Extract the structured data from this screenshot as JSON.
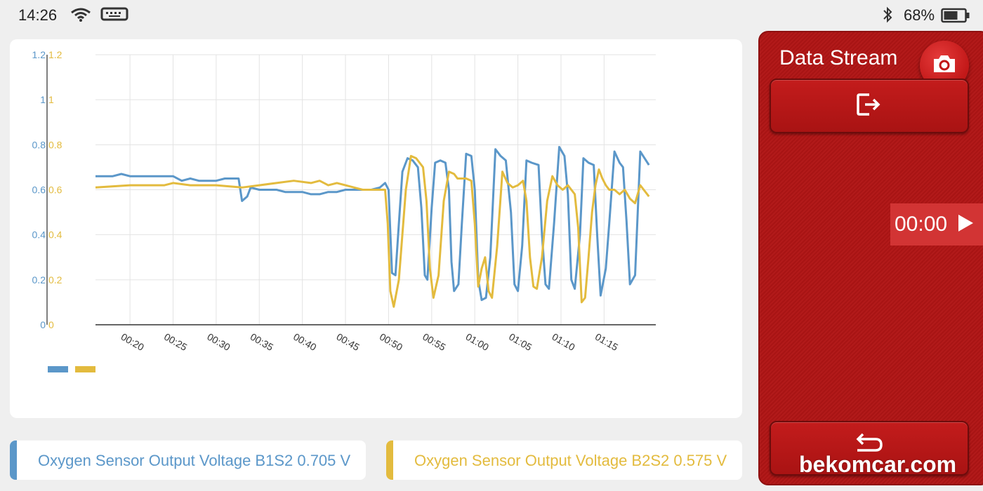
{
  "status_bar": {
    "time": "14:26",
    "battery_percent": "68%",
    "battery_level": 0.68,
    "icons": [
      "wifi-icon",
      "keyboard-icon",
      "bluetooth-icon",
      "battery-icon"
    ]
  },
  "chart_data": {
    "type": "line",
    "x_tick_labels": [
      "00:20",
      "00:25",
      "00:30",
      "00:35",
      "00:40",
      "00:45",
      "00:50",
      "00:55",
      "01:00",
      "01:05",
      "01:10",
      "01:15"
    ],
    "x_tick_seconds": [
      20,
      25,
      30,
      35,
      40,
      45,
      50,
      55,
      60,
      65,
      70,
      75
    ],
    "xlim_seconds": [
      16,
      76
    ],
    "ylim": [
      0,
      1.2
    ],
    "y_tick_labels": [
      "0",
      "0.2",
      "0.4",
      "0.6",
      "0.8",
      "1",
      "1.2"
    ],
    "y_tick_values": [
      0,
      0.2,
      0.4,
      0.6,
      0.8,
      1,
      1.2
    ],
    "grid": true,
    "series": [
      {
        "name": "Oxygen Sensor Output Voltage B1S2",
        "color": "#5b97c9",
        "points": [
          [
            16,
            0.66
          ],
          [
            18,
            0.66
          ],
          [
            19,
            0.67
          ],
          [
            20,
            0.66
          ],
          [
            22,
            0.66
          ],
          [
            23,
            0.66
          ],
          [
            24,
            0.66
          ],
          [
            25,
            0.66
          ],
          [
            26,
            0.64
          ],
          [
            27,
            0.65
          ],
          [
            28,
            0.64
          ],
          [
            29,
            0.64
          ],
          [
            30,
            0.64
          ],
          [
            31,
            0.65
          ],
          [
            32,
            0.65
          ],
          [
            32.6,
            0.65
          ],
          [
            33,
            0.55
          ],
          [
            33.6,
            0.57
          ],
          [
            34,
            0.61
          ],
          [
            35,
            0.6
          ],
          [
            36,
            0.6
          ],
          [
            37,
            0.6
          ],
          [
            38,
            0.59
          ],
          [
            39,
            0.59
          ],
          [
            40,
            0.59
          ],
          [
            41,
            0.58
          ],
          [
            42,
            0.58
          ],
          [
            43,
            0.59
          ],
          [
            44,
            0.59
          ],
          [
            45,
            0.6
          ],
          [
            46,
            0.6
          ],
          [
            47,
            0.6
          ],
          [
            48,
            0.6
          ],
          [
            49,
            0.61
          ],
          [
            49.6,
            0.63
          ],
          [
            50,
            0.6
          ],
          [
            50.4,
            0.23
          ],
          [
            50.8,
            0.22
          ],
          [
            51.2,
            0.45
          ],
          [
            51.6,
            0.68
          ],
          [
            52.2,
            0.74
          ],
          [
            52.8,
            0.73
          ],
          [
            53.4,
            0.7
          ],
          [
            53.8,
            0.52
          ],
          [
            54.2,
            0.22
          ],
          [
            54.5,
            0.2
          ],
          [
            55,
            0.52
          ],
          [
            55.4,
            0.72
          ],
          [
            56,
            0.73
          ],
          [
            56.6,
            0.72
          ],
          [
            57,
            0.6
          ],
          [
            57.3,
            0.28
          ],
          [
            57.6,
            0.15
          ],
          [
            58.1,
            0.18
          ],
          [
            58.5,
            0.45
          ],
          [
            59,
            0.76
          ],
          [
            59.6,
            0.75
          ],
          [
            60,
            0.6
          ],
          [
            60.4,
            0.2
          ],
          [
            60.8,
            0.11
          ],
          [
            61.3,
            0.12
          ],
          [
            61.8,
            0.3
          ],
          [
            62.4,
            0.78
          ],
          [
            63,
            0.75
          ],
          [
            63.6,
            0.73
          ],
          [
            64.2,
            0.5
          ],
          [
            64.6,
            0.18
          ],
          [
            65,
            0.15
          ],
          [
            65.5,
            0.35
          ],
          [
            66,
            0.73
          ],
          [
            66.6,
            0.72
          ],
          [
            67.4,
            0.71
          ],
          [
            67.8,
            0.4
          ],
          [
            68.2,
            0.18
          ],
          [
            68.6,
            0.16
          ],
          [
            69.2,
            0.45
          ],
          [
            69.8,
            0.79
          ],
          [
            70.4,
            0.75
          ],
          [
            70.8,
            0.58
          ],
          [
            71.2,
            0.2
          ],
          [
            71.6,
            0.16
          ],
          [
            72.2,
            0.4
          ],
          [
            72.6,
            0.74
          ],
          [
            73.2,
            0.72
          ],
          [
            73.8,
            0.71
          ],
          [
            74.2,
            0.4
          ],
          [
            74.6,
            0.13
          ],
          [
            75.2,
            0.25
          ],
          [
            75.6,
            0.45
          ],
          [
            76.2,
            0.77
          ],
          [
            76.8,
            0.72
          ],
          [
            77.2,
            0.7
          ],
          [
            77.6,
            0.46
          ],
          [
            78,
            0.18
          ],
          [
            78.6,
            0.22
          ],
          [
            79.2,
            0.77
          ],
          [
            79.7,
            0.74
          ],
          [
            80.2,
            0.71
          ]
        ]
      },
      {
        "name": "Oxygen Sensor Output Voltage B2S2",
        "color": "#e3bb3e",
        "points": [
          [
            16,
            0.61
          ],
          [
            20,
            0.62
          ],
          [
            24,
            0.62
          ],
          [
            25,
            0.63
          ],
          [
            27,
            0.62
          ],
          [
            30,
            0.62
          ],
          [
            33,
            0.61
          ],
          [
            35,
            0.62
          ],
          [
            37,
            0.63
          ],
          [
            39,
            0.64
          ],
          [
            41,
            0.63
          ],
          [
            42,
            0.64
          ],
          [
            43,
            0.62
          ],
          [
            44,
            0.63
          ],
          [
            45,
            0.62
          ],
          [
            46,
            0.61
          ],
          [
            47,
            0.6
          ],
          [
            48,
            0.6
          ],
          [
            49,
            0.6
          ],
          [
            49.6,
            0.6
          ],
          [
            49.9,
            0.45
          ],
          [
            50.2,
            0.15
          ],
          [
            50.6,
            0.08
          ],
          [
            51.2,
            0.2
          ],
          [
            52,
            0.6
          ],
          [
            52.6,
            0.75
          ],
          [
            53.2,
            0.74
          ],
          [
            54,
            0.7
          ],
          [
            54.4,
            0.55
          ],
          [
            54.8,
            0.25
          ],
          [
            55.2,
            0.12
          ],
          [
            55.8,
            0.22
          ],
          [
            56.4,
            0.55
          ],
          [
            57,
            0.68
          ],
          [
            57.6,
            0.67
          ],
          [
            58,
            0.65
          ],
          [
            59,
            0.65
          ],
          [
            59.6,
            0.64
          ],
          [
            60,
            0.45
          ],
          [
            60.4,
            0.17
          ],
          [
            60.8,
            0.25
          ],
          [
            61.2,
            0.3
          ],
          [
            61.6,
            0.15
          ],
          [
            62,
            0.12
          ],
          [
            62.6,
            0.35
          ],
          [
            63.2,
            0.68
          ],
          [
            63.8,
            0.63
          ],
          [
            64.4,
            0.61
          ],
          [
            65,
            0.62
          ],
          [
            65.6,
            0.64
          ],
          [
            66,
            0.55
          ],
          [
            66.4,
            0.3
          ],
          [
            66.8,
            0.17
          ],
          [
            67.2,
            0.16
          ],
          [
            67.8,
            0.3
          ],
          [
            68.4,
            0.55
          ],
          [
            69,
            0.66
          ],
          [
            69.6,
            0.62
          ],
          [
            70.2,
            0.6
          ],
          [
            70.8,
            0.62
          ],
          [
            71.2,
            0.6
          ],
          [
            71.6,
            0.58
          ],
          [
            72,
            0.43
          ],
          [
            72.4,
            0.1
          ],
          [
            72.8,
            0.12
          ],
          [
            73.2,
            0.3
          ],
          [
            73.6,
            0.5
          ],
          [
            74,
            0.62
          ],
          [
            74.4,
            0.69
          ],
          [
            74.8,
            0.65
          ],
          [
            75.2,
            0.62
          ],
          [
            75.6,
            0.6
          ],
          [
            76.2,
            0.6
          ],
          [
            76.8,
            0.58
          ],
          [
            77.4,
            0.6
          ],
          [
            78,
            0.56
          ],
          [
            78.6,
            0.54
          ],
          [
            79.2,
            0.62
          ],
          [
            79.6,
            0.6
          ],
          [
            80.2,
            0.57
          ]
        ]
      }
    ]
  },
  "legend": [
    {
      "label": "Oxygen Sensor Output Voltage B1S2 0.705 V",
      "color": "#5b97c9"
    },
    {
      "label": "Oxygen Sensor Output Voltage B2S2 0.575 V",
      "color": "#e3bb3e"
    }
  ],
  "panel": {
    "title": "Data Stream",
    "camera_icon": "camera-icon",
    "exit_icon": "exit-icon",
    "timer": "00:00",
    "play_icon": "play-icon",
    "back_icon": "back-icon",
    "watermark": "bekomcar.com"
  }
}
